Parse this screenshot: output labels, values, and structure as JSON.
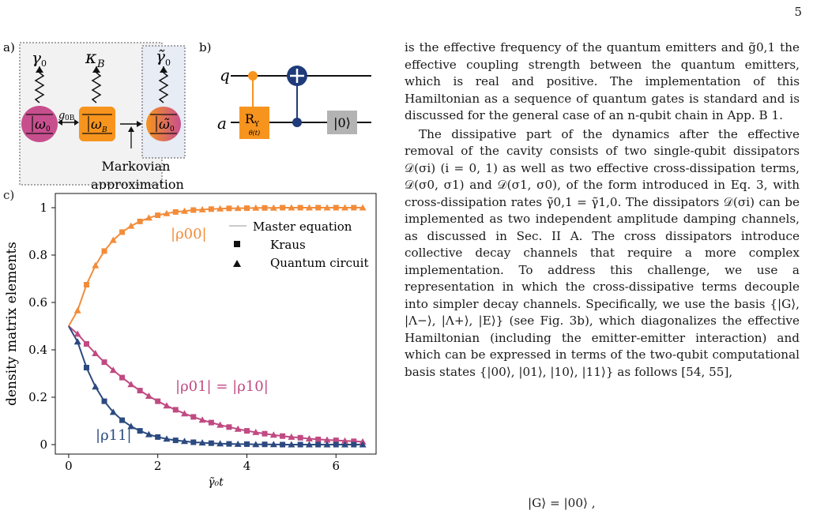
{
  "page_number": "5",
  "panel_a": {
    "label": "a)",
    "gamma": "γ",
    "gamma_sub": "0",
    "kappa": "κ",
    "kappa_sub": "B",
    "gamma_tilde": "γ̃",
    "gamma_tilde_sub": "0",
    "omega": "ω",
    "omega_sub": "0",
    "omega_b": "ω",
    "omega_b_sub": "B",
    "omega_tilde": "ω̃",
    "omega_tilde_sub": "0",
    "coupling": "g",
    "coupling_sub": "0B",
    "caption_line1": "Markovian",
    "caption_line2": "approximation",
    "colors": {
      "emitter": "#c84f8e",
      "cavity": "#f7941d",
      "box": "#f2f2f2"
    }
  },
  "panel_b": {
    "label": "b)",
    "qubit_q": "q",
    "qubit_a": "a",
    "gate_name": "R",
    "gate_sub": "Y",
    "gate_param": "θ(t)",
    "reset": "|0⟩",
    "colors": {
      "orange": "#f7941d",
      "blue": "#1f3b7a",
      "gray": "#b3b3b3"
    }
  },
  "panel_c": {
    "label": "c)"
  },
  "chart_data": {
    "type": "line",
    "xlabel": "γ̃₀t",
    "ylabel": "density matrix elements",
    "xlim": [
      -0.3,
      6.9
    ],
    "ylim": [
      -0.04,
      1.06
    ],
    "xticks": [
      "0",
      "2",
      "4",
      "6"
    ],
    "yticks": [
      "0",
      "0.2",
      "0.4",
      "0.6",
      "0.8",
      "1"
    ],
    "legend": [
      "Master equation",
      "Kraus",
      "Quantum circuit"
    ],
    "legend_position": "right",
    "annotations": [
      "|ρ00|",
      "|ρ01| = |ρ10|",
      "|ρ11|"
    ],
    "series": [
      {
        "name": "|ρ00|",
        "color": "#f28c3a",
        "x": [
          0.0,
          0.2,
          0.4,
          0.6,
          0.8,
          1.0,
          1.2,
          1.4,
          1.6,
          1.8,
          2.0,
          2.2,
          2.4,
          2.6,
          2.8,
          3.0,
          3.2,
          3.4,
          3.6,
          3.8,
          4.0,
          4.2,
          4.4,
          4.6,
          4.8,
          5.0,
          5.2,
          5.4,
          5.6,
          5.8,
          6.0,
          6.2,
          6.4,
          6.6
        ],
        "y": [
          0.5,
          0.566,
          0.675,
          0.756,
          0.817,
          0.863,
          0.897,
          0.923,
          0.942,
          0.957,
          0.968,
          0.976,
          0.982,
          0.986,
          0.99,
          0.992,
          0.994,
          0.996,
          0.997,
          0.998,
          0.998,
          0.999,
          0.999,
          0.999,
          1.0,
          1.0,
          1.0,
          1.0,
          1.0,
          1.0,
          1.0,
          1.0,
          1.0,
          1.0
        ]
      },
      {
        "name": "|ρ01| = |ρ10|",
        "color": "#c04a82",
        "x": [
          0.0,
          0.2,
          0.4,
          0.6,
          0.8,
          1.0,
          1.2,
          1.4,
          1.6,
          1.8,
          2.0,
          2.2,
          2.4,
          2.6,
          2.8,
          3.0,
          3.2,
          3.4,
          3.6,
          3.8,
          4.0,
          4.2,
          4.4,
          4.6,
          4.8,
          5.0,
          5.2,
          5.4,
          5.6,
          5.8,
          6.0,
          6.2,
          6.4,
          6.6
        ],
        "y": [
          0.5,
          0.467,
          0.425,
          0.385,
          0.348,
          0.314,
          0.283,
          0.254,
          0.228,
          0.205,
          0.183,
          0.164,
          0.147,
          0.131,
          0.117,
          0.104,
          0.093,
          0.083,
          0.074,
          0.066,
          0.058,
          0.052,
          0.046,
          0.041,
          0.036,
          0.032,
          0.029,
          0.025,
          0.022,
          0.02,
          0.018,
          0.016,
          0.014,
          0.012
        ]
      },
      {
        "name": "|ρ11|",
        "color": "#2c4a80",
        "x": [
          0.0,
          0.2,
          0.4,
          0.6,
          0.8,
          1.0,
          1.2,
          1.4,
          1.6,
          1.8,
          2.0,
          2.2,
          2.4,
          2.6,
          2.8,
          3.0,
          3.2,
          3.4,
          3.6,
          3.8,
          4.0,
          4.2,
          4.4,
          4.6,
          4.8,
          5.0,
          5.2,
          5.4,
          5.6,
          5.8,
          6.0,
          6.2,
          6.4,
          6.6
        ],
        "y": [
          0.5,
          0.434,
          0.325,
          0.244,
          0.183,
          0.137,
          0.103,
          0.077,
          0.058,
          0.043,
          0.032,
          0.024,
          0.018,
          0.014,
          0.01,
          0.008,
          0.006,
          0.004,
          0.003,
          0.002,
          0.002,
          0.001,
          0.001,
          0.001,
          0.0,
          0.0,
          0.0,
          0.0,
          0.0,
          0.0,
          0.0,
          0.0,
          0.0,
          0.0
        ]
      }
    ]
  },
  "text": {
    "p1": "is the effective frequency of the quantum emitters and g̃0,1 the effective coupling strength between the quantum emitters, which is real and positive. The implementation of this Hamiltonian as a sequence of quantum gates is standard and is discussed for the general case of an n-qubit chain in App. B 1.",
    "p2": "The dissipative part of the dynamics after the effective removal of the cavity consists of two single-qubit dissipators 𝒟(σi) (i = 0, 1) as well as two effective cross-dissipation terms, 𝒟(σ0, σ1) and 𝒟(σ1, σ0), of the form introduced in Eq. 3, with cross-dissipation rates γ̃0,1 = γ̃1,0. The dissipators 𝒟(σi) can be implemented as two independent amplitude damping channels, as discussed in Sec. II A. The cross dissipators introduce collective decay channels that require a more complex implementation. To address this challenge, we use a representation in which the cross-dissipative terms decouple into simpler decay channels. Specifically, we use the basis {|G⟩, |Λ−⟩, |Λ+⟩, |E⟩} (see Fig. 3b), which diagonalizes the effective Hamiltonian (including the emitter-emitter interaction) and which can be expressed in terms of the two-qubit computational basis states {|00⟩, |01⟩, |10⟩, |11⟩} as follows [54, 55],",
    "equation": "|G⟩ = |00⟩ ,"
  }
}
